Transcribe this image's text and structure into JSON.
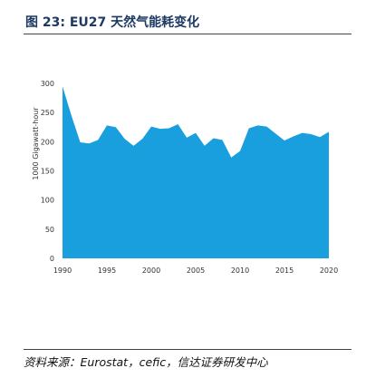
{
  "figure": {
    "title": "图 23:  EU27 天然气能耗变化",
    "source": "资料来源：Eurostat，cefic，信达证券研发中心"
  },
  "colors": {
    "area_fill": "#1a9fde",
    "title_color": "#1c3a63"
  },
  "chart_data": {
    "type": "area",
    "title": "",
    "xlabel": "",
    "ylabel": "1000 Gigawatt-hour",
    "x": [
      1990,
      1991,
      1992,
      1993,
      1994,
      1995,
      1996,
      1997,
      1998,
      1999,
      2000,
      2001,
      2002,
      2003,
      2004,
      2005,
      2006,
      2007,
      2008,
      2009,
      2010,
      2011,
      2012,
      2013,
      2014,
      2015,
      2016,
      2017,
      2018,
      2019,
      2020
    ],
    "series": [
      {
        "values": [
          295,
          245,
          199,
          197,
          203,
          228,
          225,
          205,
          193,
          205,
          226,
          222,
          223,
          230,
          207,
          215,
          193,
          206,
          203,
          173,
          184,
          223,
          228,
          226,
          214,
          202,
          209,
          215,
          213,
          208,
          217
        ]
      }
    ],
    "xlim": [
      1990,
      2020
    ],
    "ylim": [
      0,
      300
    ],
    "xticks": [
      "1990",
      "1995",
      "2000",
      "2005",
      "2010",
      "2015",
      "2020"
    ],
    "yticks": [
      "0",
      "50",
      "100",
      "150",
      "200",
      "250",
      "300"
    ],
    "grid": false,
    "legend": "none"
  }
}
